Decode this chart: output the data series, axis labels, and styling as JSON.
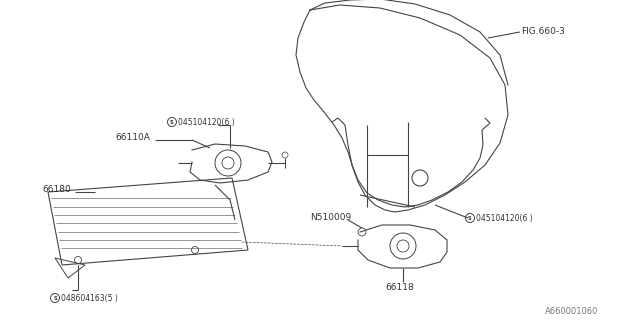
{
  "bg_color": "#ffffff",
  "line_color": "#444444",
  "text_color": "#333333",
  "title_bottom_right": "A660001060",
  "fig_label": "FIG.660-3",
  "label_66110A": "66110A",
  "label_66180": "66180",
  "label_66118": "66118",
  "label_N510009": "N510009",
  "label_S1": "045104120(6 )",
  "label_S2": "045104120(6 )",
  "label_S3": "048604163(5 )"
}
